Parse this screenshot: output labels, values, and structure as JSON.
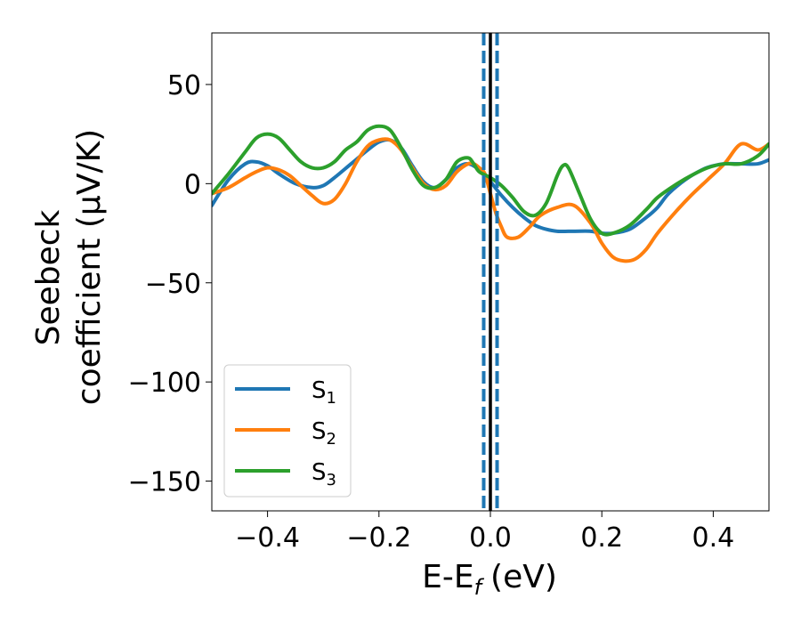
{
  "chart_data": {
    "type": "line",
    "xlabel": "E-E",
    "xlabel_sub": "f",
    "xlabel_unit": "(eV)",
    "ylabel_line1": "Seebeck",
    "ylabel_line2": "coefficient  (μV/K)",
    "xlim": [
      -0.5,
      0.5
    ],
    "ylim": [
      -165,
      76
    ],
    "xticks": [
      -0.4,
      -0.2,
      0.0,
      0.2,
      0.4
    ],
    "xtick_labels": [
      "−0.4",
      "−0.2",
      "0.0",
      "0.2",
      "0.4"
    ],
    "yticks": [
      50,
      0,
      -50,
      -100,
      -150
    ],
    "ytick_labels": [
      "50",
      "0",
      "−50",
      "−100",
      "−150"
    ],
    "grid": false,
    "legend_position": "lower-left",
    "vlines": [
      {
        "x": 0.0,
        "style": "solid",
        "color": "#000000"
      },
      {
        "x": -0.012,
        "style": "dashed",
        "color": "#1f77b4"
      },
      {
        "x": 0.012,
        "style": "dashed",
        "color": "#1f77b4"
      }
    ],
    "series": [
      {
        "name": "S",
        "sub": "1",
        "color": "#1f77b4",
        "x": [
          -0.5,
          -0.47,
          -0.44,
          -0.42,
          -0.4,
          -0.38,
          -0.35,
          -0.32,
          -0.3,
          -0.28,
          -0.25,
          -0.22,
          -0.2,
          -0.18,
          -0.16,
          -0.14,
          -0.12,
          -0.1,
          -0.08,
          -0.06,
          -0.04,
          -0.02,
          0.0,
          0.02,
          0.04,
          0.06,
          0.08,
          0.1,
          0.12,
          0.15,
          0.18,
          0.2,
          0.22,
          0.25,
          0.28,
          0.3,
          0.32,
          0.35,
          0.38,
          0.4,
          0.42,
          0.45,
          0.48,
          0.5
        ],
        "y": [
          -11,
          2,
          10,
          11,
          9,
          5,
          0,
          -2,
          -1,
          3,
          10,
          17,
          21,
          22,
          18,
          9,
          1,
          -2,
          2,
          8,
          10,
          7,
          1,
          -6,
          -12,
          -17,
          -21,
          -23,
          -24,
          -24,
          -24,
          -25,
          -25,
          -23,
          -17,
          -12,
          -5,
          2,
          7,
          9,
          10,
          10,
          10,
          12
        ]
      },
      {
        "name": "S",
        "sub": "2",
        "color": "#ff7f0e",
        "x": [
          -0.5,
          -0.47,
          -0.44,
          -0.42,
          -0.4,
          -0.38,
          -0.36,
          -0.34,
          -0.32,
          -0.3,
          -0.28,
          -0.26,
          -0.24,
          -0.22,
          -0.2,
          -0.18,
          -0.16,
          -0.14,
          -0.12,
          -0.1,
          -0.08,
          -0.06,
          -0.04,
          -0.03,
          -0.02,
          -0.01,
          0.0,
          0.01,
          0.02,
          0.03,
          0.05,
          0.07,
          0.09,
          0.12,
          0.15,
          0.18,
          0.2,
          0.22,
          0.24,
          0.26,
          0.28,
          0.3,
          0.33,
          0.36,
          0.39,
          0.42,
          0.45,
          0.48,
          0.5
        ],
        "y": [
          -5,
          -2,
          3,
          6,
          8,
          7,
          4,
          -1,
          -6,
          -10,
          -8,
          0,
          11,
          19,
          22,
          22,
          17,
          8,
          0,
          -3,
          -1,
          6,
          10,
          10,
          8,
          5,
          -5,
          -15,
          -22,
          -27,
          -27,
          -22,
          -16,
          -12,
          -11,
          -20,
          -30,
          -37,
          -39,
          -38,
          -33,
          -25,
          -15,
          -6,
          2,
          10,
          20,
          17,
          20
        ]
      },
      {
        "name": "S",
        "sub": "3",
        "color": "#2ca02c",
        "x": [
          -0.5,
          -0.47,
          -0.44,
          -0.42,
          -0.4,
          -0.38,
          -0.36,
          -0.34,
          -0.32,
          -0.3,
          -0.28,
          -0.26,
          -0.24,
          -0.22,
          -0.2,
          -0.18,
          -0.16,
          -0.14,
          -0.12,
          -0.1,
          -0.08,
          -0.06,
          -0.04,
          -0.03,
          -0.02,
          0.0,
          0.02,
          0.04,
          0.06,
          0.08,
          0.1,
          0.12,
          0.13,
          0.14,
          0.16,
          0.18,
          0.2,
          0.22,
          0.25,
          0.28,
          0.3,
          0.33,
          0.36,
          0.39,
          0.42,
          0.45,
          0.48,
          0.5
        ],
        "y": [
          -5,
          5,
          16,
          23,
          25,
          23,
          17,
          11,
          8,
          8,
          11,
          17,
          21,
          27,
          29,
          27,
          18,
          7,
          -1,
          -2,
          2,
          11,
          13,
          10,
          6,
          3,
          -1,
          -7,
          -14,
          -16,
          -10,
          4,
          9,
          8,
          -5,
          -18,
          -25,
          -25,
          -21,
          -13,
          -7,
          -1,
          4,
          8,
          10,
          10,
          14,
          20
        ]
      }
    ]
  }
}
